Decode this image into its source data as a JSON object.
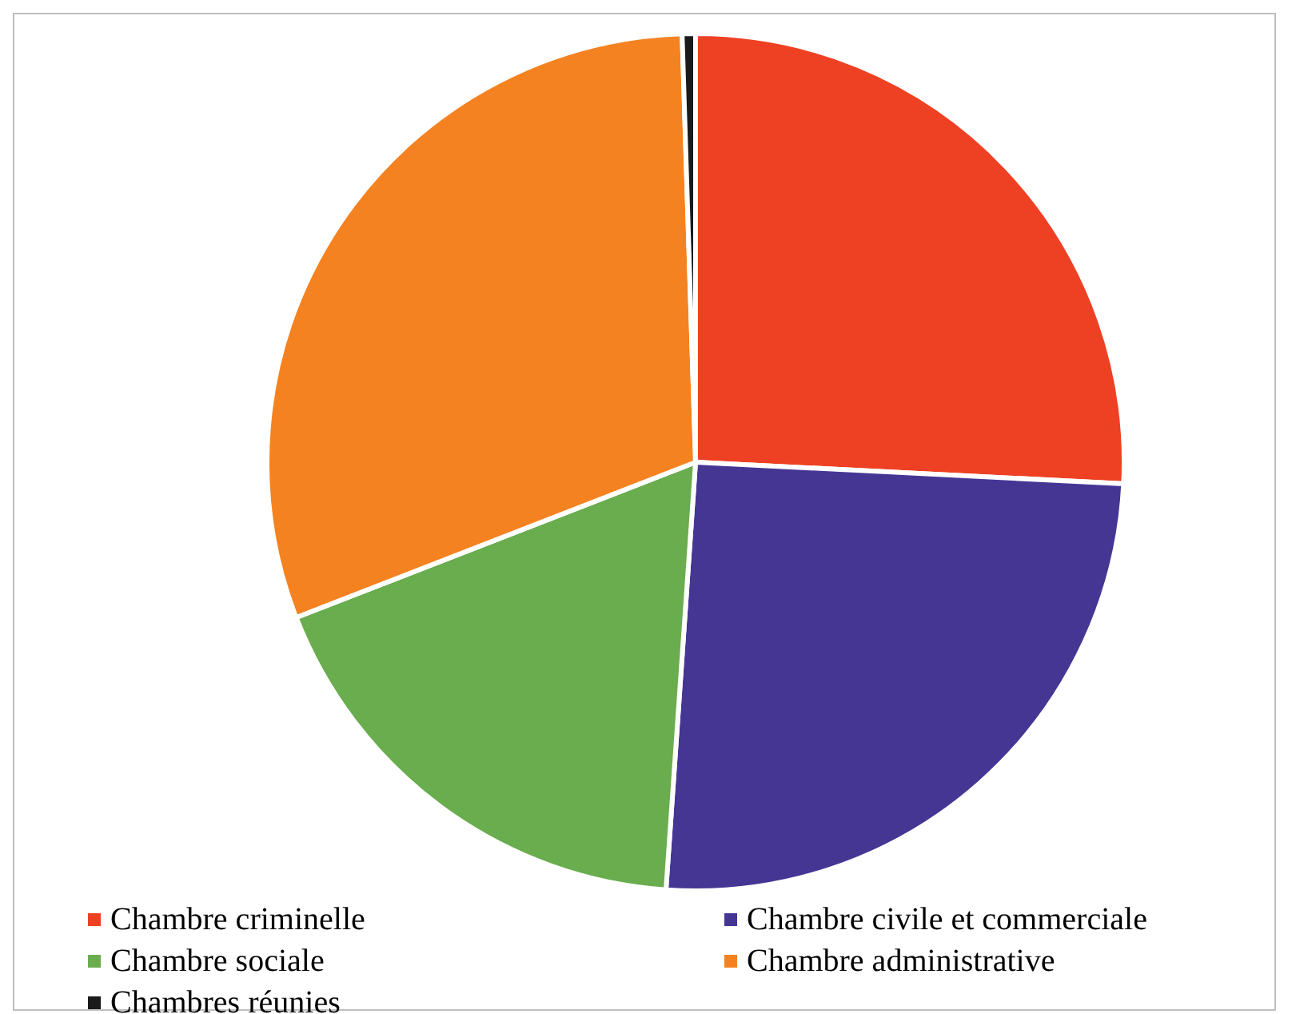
{
  "chart_data": {
    "type": "pie",
    "categories": [
      "Chambre criminelle",
      "Chambre civile et commerciale",
      "Chambre sociale",
      "Chambre administrative",
      "Chambres réunies"
    ],
    "values": [
      25.8,
      25.3,
      18.0,
      30.4,
      0.5
    ],
    "colors": [
      "#ee4123",
      "#453694",
      "#69ad4e",
      "#f58220",
      "#1a1a1a"
    ],
    "legend": "bottom"
  }
}
